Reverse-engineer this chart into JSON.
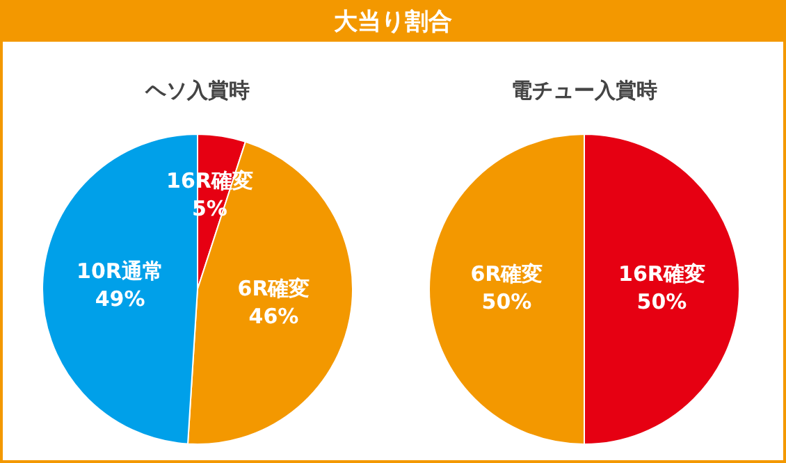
{
  "chart_data": [
    {
      "type": "pie",
      "title": "大当り割合",
      "subtitle": "ヘソ入賞時",
      "categories": [
        "16R確変",
        "6R確変",
        "10R通常"
      ],
      "values": [
        5,
        46,
        49
      ],
      "colors": [
        "#e60012",
        "#f39800",
        "#00a0e9"
      ],
      "value_labels": [
        "5%",
        "46%",
        "49%"
      ],
      "legend": false
    },
    {
      "type": "pie",
      "subtitle": "電チュー入賞時",
      "categories": [
        "16R確変",
        "6R確変"
      ],
      "values": [
        50,
        50
      ],
      "colors": [
        "#e60012",
        "#f39800"
      ],
      "value_labels": [
        "50%",
        "50%"
      ],
      "legend": false
    }
  ]
}
